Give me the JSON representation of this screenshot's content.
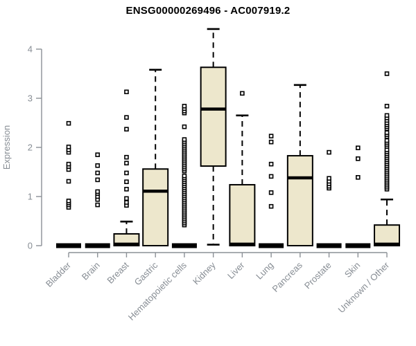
{
  "chart_data": {
    "type": "boxplot",
    "title": "ENSG00000269496 - AC007919.2",
    "ylabel": "Expression",
    "xlabel": "",
    "ylim": [
      0,
      4.45
    ],
    "yticks": [
      0,
      1,
      2,
      3,
      4
    ],
    "ytick_labels": [
      "0",
      "1",
      "2",
      "3",
      "4"
    ],
    "grid": false,
    "categories": [
      "Bladder",
      "Brain",
      "Breast",
      "Gastric",
      "Hematopoietic cells",
      "Kidney",
      "Liver",
      "Lung",
      "Pancreas",
      "Prostate",
      "Skin",
      "Unknown / Other"
    ],
    "series": [
      {
        "name": "Bladder",
        "whisker_low": 0,
        "q1": 0,
        "median": 0,
        "q3": 0,
        "whisker_high": 0,
        "outliers": [
          0.78,
          0.83,
          0.87,
          0.91,
          1.31,
          1.55,
          1.61,
          1.66,
          1.9,
          1.95,
          2.01,
          2.49
        ]
      },
      {
        "name": "Brain",
        "whisker_low": 0,
        "q1": 0,
        "median": 0,
        "q3": 0,
        "whisker_high": 0,
        "outliers": [
          0.83,
          0.94,
          1.0,
          1.06,
          1.1,
          1.34,
          1.48,
          1.63,
          1.85
        ]
      },
      {
        "name": "Breast",
        "whisker_low": 0,
        "q1": 0,
        "median": 0.03,
        "q3": 0.24,
        "whisker_high": 0.49,
        "outliers": [
          0.82,
          0.88,
          0.96,
          1.15,
          1.3,
          1.48,
          1.68,
          1.8,
          2.37,
          2.61,
          3.13
        ]
      },
      {
        "name": "Gastric",
        "whisker_low": 0,
        "q1": 0,
        "median": 1.11,
        "q3": 1.56,
        "whisker_high": 3.58,
        "outliers": []
      },
      {
        "name": "Hematopoietic cells",
        "whisker_low": 0,
        "q1": 0,
        "median": 0,
        "q3": 0,
        "whisker_high": 0,
        "outliers": [
          0.42,
          0.46,
          0.5,
          0.54,
          0.58,
          0.62,
          0.66,
          0.7,
          0.74,
          0.78,
          0.82,
          0.86,
          0.9,
          0.94,
          0.98,
          1.02,
          1.06,
          1.1,
          1.14,
          1.18,
          1.22,
          1.26,
          1.3,
          1.34,
          1.38,
          1.42,
          1.52,
          1.56,
          1.6,
          1.64,
          1.68,
          1.72,
          1.76,
          1.8,
          1.84,
          1.88,
          1.92,
          1.96,
          2.0,
          2.04,
          2.08,
          2.12,
          2.16,
          2.42,
          2.7,
          2.74,
          2.79,
          2.84
        ]
      },
      {
        "name": "Kidney",
        "whisker_low": 0.02,
        "q1": 1.62,
        "median": 2.78,
        "q3": 3.63,
        "whisker_high": 4.41,
        "outliers": []
      },
      {
        "name": "Liver",
        "whisker_low": 0,
        "q1": 0,
        "median": 0.03,
        "q3": 1.24,
        "whisker_high": 2.65,
        "outliers": [
          3.1
        ]
      },
      {
        "name": "Lung",
        "whisker_low": 0,
        "q1": 0,
        "median": 0,
        "q3": 0,
        "whisker_high": 0,
        "outliers": [
          0.8,
          1.08,
          1.41,
          1.66,
          2.11,
          2.23
        ]
      },
      {
        "name": "Pancreas",
        "whisker_low": 0,
        "q1": 0,
        "median": 1.38,
        "q3": 1.83,
        "whisker_high": 3.27,
        "outliers": []
      },
      {
        "name": "Prostate",
        "whisker_low": 0,
        "q1": 0,
        "median": 0,
        "q3": 0,
        "whisker_high": 0,
        "outliers": [
          1.17,
          1.21,
          1.26,
          1.31,
          1.37,
          1.9
        ]
      },
      {
        "name": "Skin",
        "whisker_low": 0,
        "q1": 0,
        "median": 0,
        "q3": 0,
        "whisker_high": 0,
        "outliers": [
          1.39,
          1.77,
          1.99
        ]
      },
      {
        "name": "Unknown / Other",
        "whisker_low": 0,
        "q1": 0,
        "median": 0.03,
        "q3": 0.42,
        "whisker_high": 0.94,
        "outliers": [
          1.15,
          1.19,
          1.23,
          1.27,
          1.31,
          1.35,
          1.39,
          1.43,
          1.47,
          1.51,
          1.55,
          1.59,
          1.63,
          1.67,
          1.71,
          1.75,
          1.79,
          1.83,
          1.87,
          1.91,
          1.95,
          2.02,
          2.06,
          2.1,
          2.14,
          2.22,
          2.26,
          2.3,
          2.38,
          2.42,
          2.46,
          2.5,
          2.55,
          2.6,
          2.65,
          2.84,
          3.5
        ]
      }
    ],
    "legend": null
  },
  "colors": {
    "box_fill": "#EDE7CC",
    "box_stroke": "#000000",
    "median": "#000000",
    "whisker": "#000000",
    "outlier_fill": "#ffffff",
    "axis_line": "#8B9096",
    "axis_text": "#878D94",
    "title_text": "#000000",
    "background": "#ffffff"
  }
}
